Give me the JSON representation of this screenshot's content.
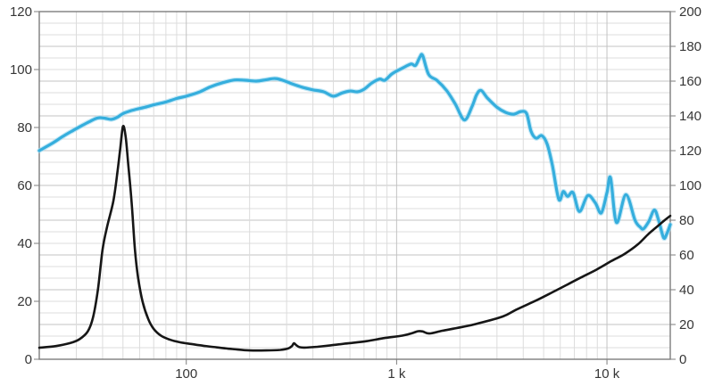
{
  "chart_data": {
    "type": "line",
    "title": "",
    "legend": "none",
    "grid": "on",
    "background": "#ffffff",
    "x_axis": {
      "scale": "log",
      "min_hz": 20,
      "max_hz": 20000,
      "tick_labels": [
        {
          "hz": 100,
          "label": "100"
        },
        {
          "hz": 1000,
          "label": "1 k"
        },
        {
          "hz": 10000,
          "label": "10 k"
        }
      ]
    },
    "y_axis_left": {
      "min": 0,
      "max": 120,
      "major_step": 20,
      "labels": [
        "120",
        "100",
        "80",
        "60",
        "40",
        "20",
        "0"
      ]
    },
    "y_axis_right": {
      "min": 0,
      "max": 200,
      "major_step": 20,
      "labels": [
        "200",
        "180",
        "160",
        "140",
        "120",
        "100",
        "80",
        "60",
        "40",
        "20",
        "0"
      ]
    },
    "colors": {
      "blue_curve": "#35aedd",
      "blue_halo": "#a5dcf1",
      "black_curve": "#161616",
      "grid_minor": "#dcdcdc",
      "grid_major": "#c3c3c3",
      "border": "#7e7e7e",
      "label_text": "#363636"
    },
    "series": [
      {
        "name": "blue-response-curve",
        "axis": "left",
        "points": [
          [
            20,
            72
          ],
          [
            23,
            74.5
          ],
          [
            26,
            77
          ],
          [
            29,
            79
          ],
          [
            32,
            80.7
          ],
          [
            35,
            82.2
          ],
          [
            38,
            83.3
          ],
          [
            41,
            83.2
          ],
          [
            44,
            82.8
          ],
          [
            47,
            83.5
          ],
          [
            50,
            84.8
          ],
          [
            54,
            85.7
          ],
          [
            58,
            86.3
          ],
          [
            63,
            86.9
          ],
          [
            70,
            87.8
          ],
          [
            80,
            88.8
          ],
          [
            90,
            90.0
          ],
          [
            100,
            90.8
          ],
          [
            115,
            92.2
          ],
          [
            130,
            94.0
          ],
          [
            150,
            95.5
          ],
          [
            170,
            96.4
          ],
          [
            190,
            96.3
          ],
          [
            215,
            96.0
          ],
          [
            240,
            96.5
          ],
          [
            265,
            96.9
          ],
          [
            290,
            96.2
          ],
          [
            320,
            95.0
          ],
          [
            355,
            93.9
          ],
          [
            400,
            93.0
          ],
          [
            450,
            92.3
          ],
          [
            500,
            90.8
          ],
          [
            550,
            91.9
          ],
          [
            600,
            92.6
          ],
          [
            650,
            92.3
          ],
          [
            700,
            93.2
          ],
          [
            760,
            95.3
          ],
          [
            830,
            96.7
          ],
          [
            880,
            96.3
          ],
          [
            950,
            98.5
          ],
          [
            1060,
            100.4
          ],
          [
            1170,
            101.9
          ],
          [
            1230,
            101.4
          ],
          [
            1290,
            104.3
          ],
          [
            1330,
            104.8
          ],
          [
            1420,
            98.3
          ],
          [
            1560,
            96.2
          ],
          [
            1730,
            92.7
          ],
          [
            1900,
            88.1
          ],
          [
            2100,
            82.6
          ],
          [
            2280,
            87.1
          ],
          [
            2400,
            91.3
          ],
          [
            2520,
            92.8
          ],
          [
            2700,
            90.2
          ],
          [
            3000,
            87.0
          ],
          [
            3300,
            85.2
          ],
          [
            3600,
            84.6
          ],
          [
            3900,
            85.5
          ],
          [
            4150,
            84.8
          ],
          [
            4350,
            78.8
          ],
          [
            4600,
            76.3
          ],
          [
            4900,
            77.2
          ],
          [
            5200,
            74.2
          ],
          [
            5500,
            67.0
          ],
          [
            5900,
            55.2
          ],
          [
            6200,
            57.9
          ],
          [
            6500,
            56.2
          ],
          [
            6900,
            57.5
          ],
          [
            7400,
            51.0
          ],
          [
            8100,
            56.5
          ],
          [
            8800,
            54.0
          ],
          [
            9400,
            50.5
          ],
          [
            10000,
            57.5
          ],
          [
            10400,
            62.6
          ],
          [
            11100,
            47.2
          ],
          [
            12300,
            56.8
          ],
          [
            13600,
            48.0
          ],
          [
            14400,
            45.6
          ],
          [
            14900,
            45.0
          ],
          [
            15800,
            47.5
          ],
          [
            16800,
            51.5
          ],
          [
            17600,
            48.0
          ],
          [
            18600,
            41.9
          ],
          [
            19300,
            43.5
          ],
          [
            20000,
            46.5
          ]
        ]
      },
      {
        "name": "black-impedance-curve",
        "axis": "right",
        "points": [
          [
            20,
            6.6
          ],
          [
            24,
            7.6
          ],
          [
            28,
            9.3
          ],
          [
            31,
            11.5
          ],
          [
            34,
            16
          ],
          [
            36,
            24
          ],
          [
            38,
            40
          ],
          [
            40,
            63
          ],
          [
            42,
            76
          ],
          [
            45,
            91
          ],
          [
            47,
            107
          ],
          [
            48.5,
            121
          ],
          [
            50,
            134
          ],
          [
            51.5,
            128
          ],
          [
            53,
            112
          ],
          [
            55,
            90
          ],
          [
            57,
            63
          ],
          [
            59,
            47
          ],
          [
            62,
            33
          ],
          [
            66,
            23
          ],
          [
            70,
            17.5
          ],
          [
            76,
            13.5
          ],
          [
            84,
            11.2
          ],
          [
            93,
            9.8
          ],
          [
            105,
            8.8
          ],
          [
            120,
            7.8
          ],
          [
            140,
            6.8
          ],
          [
            165,
            5.9
          ],
          [
            200,
            5.1
          ],
          [
            240,
            5.1
          ],
          [
            280,
            5.4
          ],
          [
            305,
            6.2
          ],
          [
            318,
            7.6
          ],
          [
            325,
            9.2
          ],
          [
            334,
            8.0
          ],
          [
            345,
            7.0
          ],
          [
            365,
            6.7
          ],
          [
            420,
            7.2
          ],
          [
            485,
            8.0
          ],
          [
            590,
            9.2
          ],
          [
            720,
            10.4
          ],
          [
            875,
            12.2
          ],
          [
            1065,
            13.6
          ],
          [
            1180,
            14.9
          ],
          [
            1260,
            16.1
          ],
          [
            1330,
            16.0
          ],
          [
            1430,
            14.8
          ],
          [
            1650,
            16.4
          ],
          [
            2060,
            18.6
          ],
          [
            2400,
            20.4
          ],
          [
            3200,
            24.6
          ],
          [
            3700,
            28.5
          ],
          [
            4640,
            34
          ],
          [
            5500,
            38.5
          ],
          [
            6400,
            42.6
          ],
          [
            7500,
            47
          ],
          [
            8900,
            51.5
          ],
          [
            10500,
            56.5
          ],
          [
            12100,
            60.5
          ],
          [
            14000,
            66
          ],
          [
            15600,
            71.6
          ],
          [
            17000,
            75.5
          ],
          [
            18900,
            80.2
          ],
          [
            20000,
            82.5
          ]
        ]
      }
    ]
  }
}
